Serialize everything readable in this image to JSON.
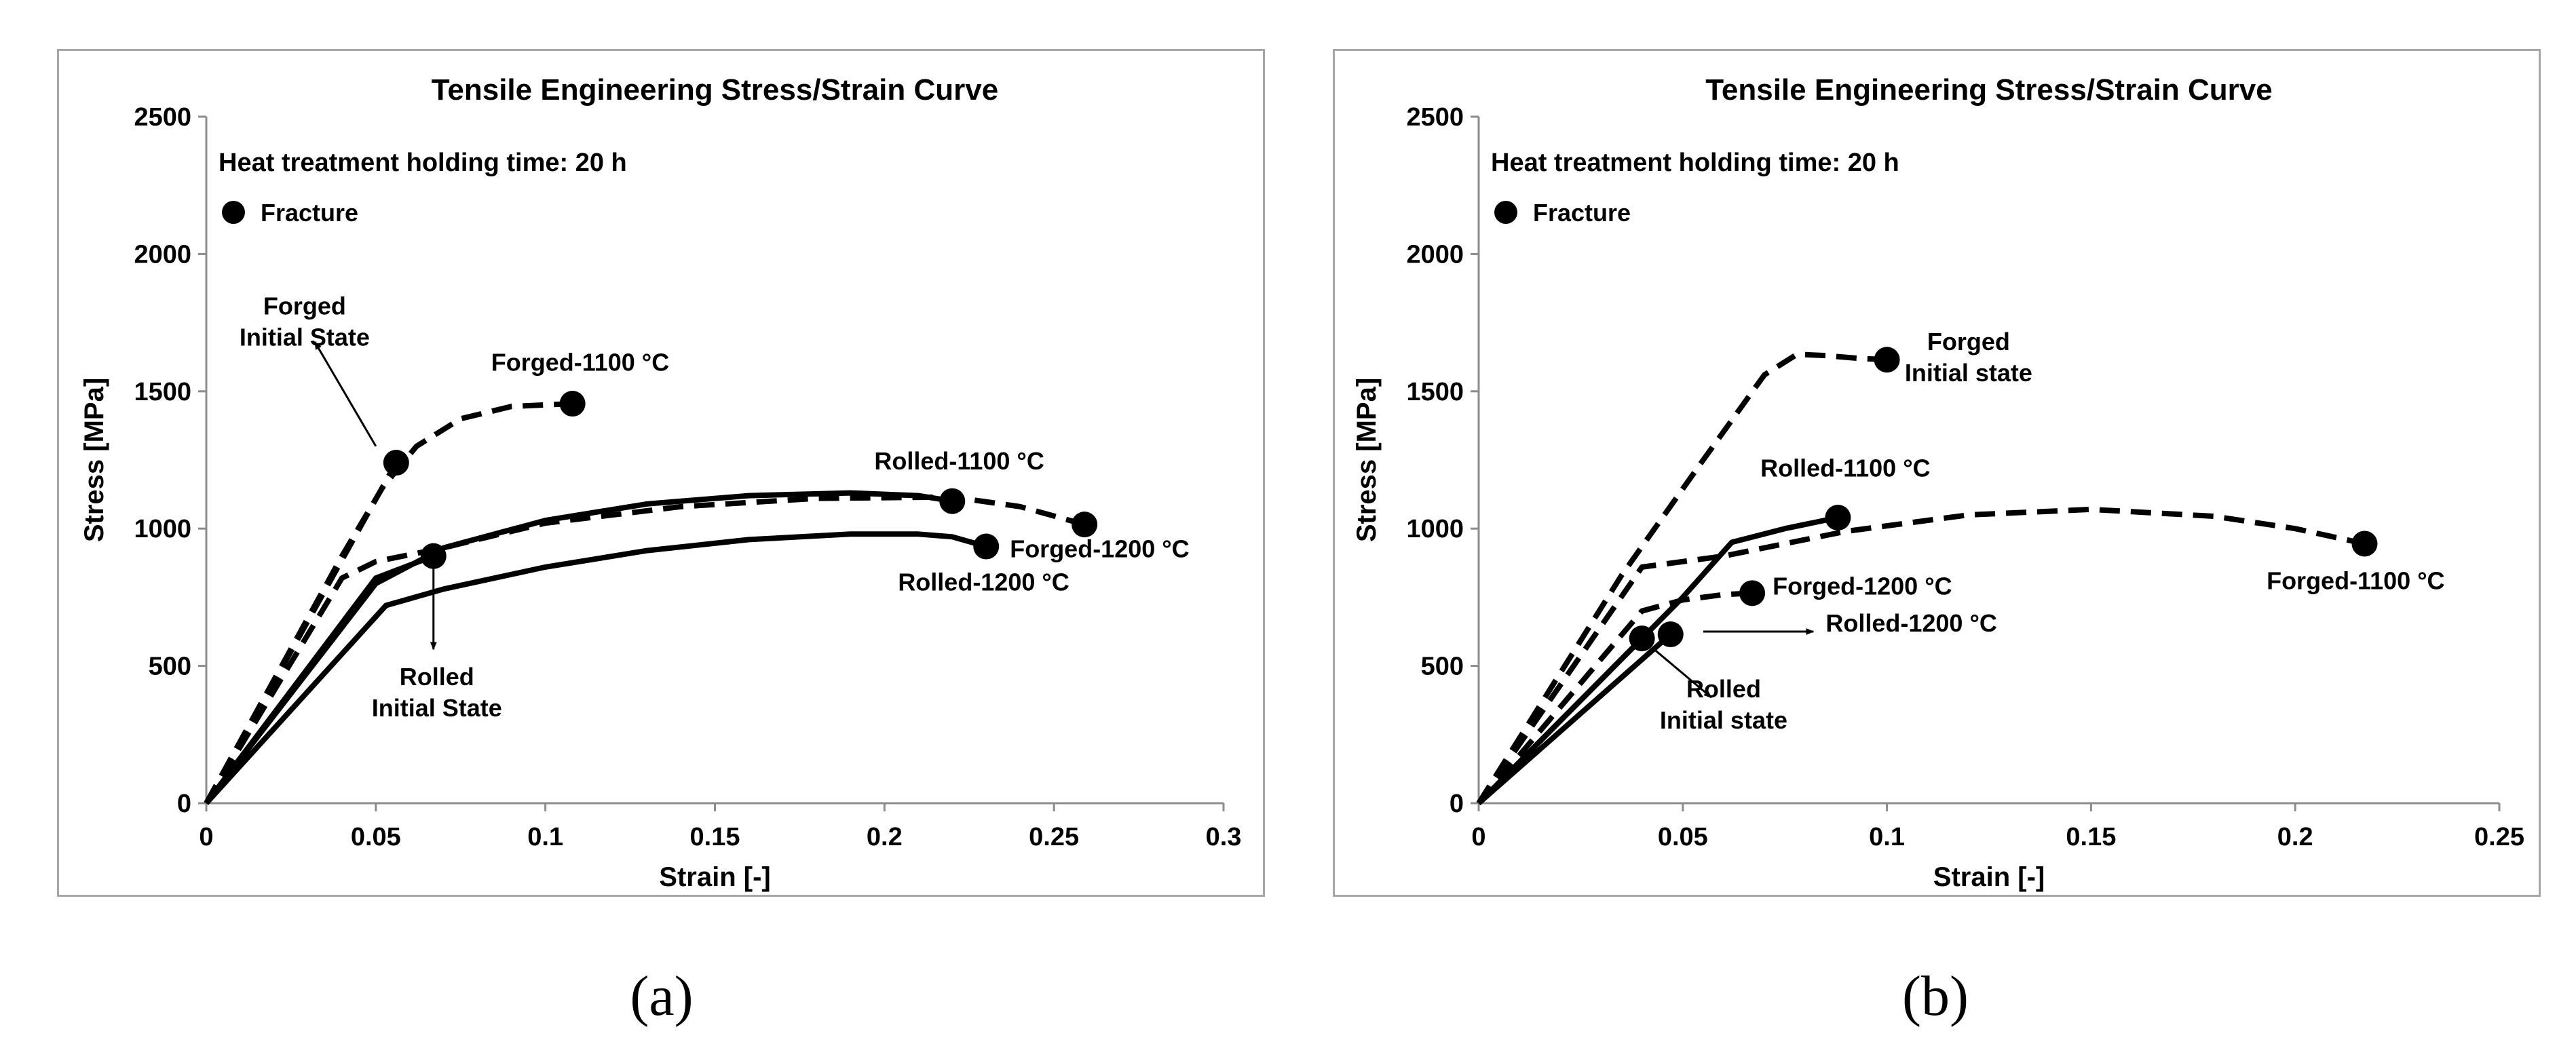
{
  "chart_data": [
    {
      "type": "line",
      "panel": "a",
      "title": "Tensile Engineering Stress/Strain Curve",
      "xlabel": "Strain [-]",
      "ylabel": "Stress [MPa]",
      "xlim": [
        0,
        0.3
      ],
      "ylim": [
        0,
        2500
      ],
      "xticks": [
        0,
        0.05,
        0.1,
        0.15,
        0.2,
        0.25,
        0.3
      ],
      "xtick_labels": [
        "0",
        "0.05",
        "0.1",
        "0.15",
        "0.2",
        "0.25",
        "0.3"
      ],
      "yticks": [
        0,
        500,
        1000,
        1500,
        2000,
        2500
      ],
      "ytick_labels": [
        "0",
        "500",
        "1000",
        "1500",
        "2000",
        "2500"
      ],
      "legend_title": "Heat treatment holding time: 20 h",
      "legend_label": "Fracture",
      "series": [
        {
          "name": "Forged Initial State",
          "style": "dashed",
          "x": [
            0,
            0.056
          ],
          "y": [
            0,
            1240
          ],
          "fracture": [
            0.056,
            1240
          ]
        },
        {
          "name": "Forged-1100 °C",
          "style": "dashed",
          "x": [
            0,
            0.04,
            0.052,
            0.062,
            0.075,
            0.09,
            0.108
          ],
          "y": [
            0,
            900,
            1150,
            1300,
            1400,
            1445,
            1455
          ],
          "fracture": [
            0.108,
            1455
          ]
        },
        {
          "name": "Forged-1200 °C",
          "style": "dashed",
          "x": [
            0,
            0.04,
            0.05,
            0.07,
            0.1,
            0.14,
            0.18,
            0.22,
            0.24,
            0.259
          ],
          "y": [
            0,
            820,
            880,
            930,
            1020,
            1080,
            1110,
            1115,
            1080,
            1015
          ],
          "fracture": [
            0.259,
            1015
          ]
        },
        {
          "name": "Rolled Initial State",
          "style": "solid",
          "x": [
            0,
            0.05,
            0.067
          ],
          "y": [
            0,
            820,
            900
          ],
          "fracture": [
            0.067,
            900
          ]
        },
        {
          "name": "Rolled-1100 °C",
          "style": "solid",
          "x": [
            0,
            0.05,
            0.07,
            0.1,
            0.13,
            0.16,
            0.19,
            0.21,
            0.22
          ],
          "y": [
            0,
            800,
            930,
            1030,
            1090,
            1120,
            1130,
            1120,
            1100
          ],
          "fracture": [
            0.22,
            1100
          ]
        },
        {
          "name": "Rolled-1200 °C",
          "style": "solid",
          "x": [
            0,
            0.053,
            0.07,
            0.1,
            0.13,
            0.16,
            0.19,
            0.21,
            0.22,
            0.23
          ],
          "y": [
            0,
            720,
            780,
            860,
            920,
            960,
            980,
            980,
            970,
            935
          ],
          "fracture": [
            0.23,
            935
          ]
        }
      ],
      "annotations": [
        {
          "text": [
            "Forged",
            "Initial State"
          ],
          "x": 0.029,
          "y": 1780,
          "anchor": "middle"
        },
        {
          "text": [
            "Forged-1100 °C"
          ],
          "x": 0.084,
          "y": 1575,
          "anchor": "start"
        },
        {
          "text": [
            "Rolled-1100 °C"
          ],
          "x": 0.197,
          "y": 1215,
          "anchor": "start"
        },
        {
          "text": [
            "Forged-1200 °C"
          ],
          "x": 0.237,
          "y": 895,
          "anchor": "start"
        },
        {
          "text": [
            "Rolled-1200 °C"
          ],
          "x": 0.204,
          "y": 775,
          "anchor": "start"
        },
        {
          "text": [
            "Rolled",
            "Initial State"
          ],
          "x": 0.068,
          "y": 430,
          "anchor": "middle"
        }
      ],
      "arrows": [
        {
          "from": [
            0.05,
            1300
          ],
          "to": [
            0.032,
            1680
          ]
        },
        {
          "from": [
            0.067,
            860
          ],
          "to": [
            0.067,
            560
          ]
        }
      ]
    },
    {
      "type": "line",
      "panel": "b",
      "title": "Tensile Engineering Stress/Strain Curve",
      "xlabel": "Strain [-]",
      "ylabel": "Stress [MPa]",
      "xlim": [
        0,
        0.25
      ],
      "ylim": [
        0,
        2500
      ],
      "xticks": [
        0,
        0.05,
        0.1,
        0.15,
        0.2,
        0.25
      ],
      "xtick_labels": [
        "0",
        "0.05",
        "0.1",
        "0.15",
        "0.2",
        "0.25"
      ],
      "yticks": [
        0,
        500,
        1000,
        1500,
        2000,
        2500
      ],
      "ytick_labels": [
        "0",
        "500",
        "1000",
        "1500",
        "2000",
        "2500"
      ],
      "legend_title": "Heat treatment holding time: 20 h",
      "legend_label": "Fracture",
      "series": [
        {
          "name": "Forged Initial state",
          "style": "dashed",
          "x": [
            0,
            0.035,
            0.055,
            0.07,
            0.078,
            0.085,
            0.093,
            0.1
          ],
          "y": [
            0,
            830,
            1250,
            1560,
            1635,
            1630,
            1620,
            1615
          ],
          "fracture": [
            0.1,
            1615
          ]
        },
        {
          "name": "Forged-1100 °C",
          "style": "dashed",
          "x": [
            0,
            0.04,
            0.06,
            0.09,
            0.12,
            0.15,
            0.18,
            0.2,
            0.217
          ],
          "y": [
            0,
            860,
            900,
            990,
            1050,
            1070,
            1045,
            1000,
            945
          ],
          "fracture": [
            0.217,
            945
          ]
        },
        {
          "name": "Forged-1200 °C",
          "style": "dashed",
          "x": [
            0,
            0.04,
            0.05,
            0.06,
            0.067
          ],
          "y": [
            0,
            700,
            740,
            760,
            765
          ],
          "fracture": [
            0.067,
            765
          ]
        },
        {
          "name": "Rolled-1100 °C",
          "style": "solid",
          "x": [
            0,
            0.05,
            0.062,
            0.075,
            0.088
          ],
          "y": [
            0,
            750,
            950,
            1000,
            1040
          ],
          "fracture": [
            0.088,
            1040
          ]
        },
        {
          "name": "Rolled-1200 °C",
          "style": "solid",
          "x": [
            0,
            0.047
          ],
          "y": [
            0,
            615
          ],
          "fracture": [
            0.047,
            615
          ]
        },
        {
          "name": "Rolled Initial state",
          "style": "solid",
          "x": [
            0,
            0.04
          ],
          "y": [
            0,
            600
          ],
          "fracture": [
            0.04,
            600
          ]
        }
      ],
      "annotations": [
        {
          "text": [
            "Forged",
            "Initial state"
          ],
          "x": 0.12,
          "y": 1650,
          "anchor": "middle"
        },
        {
          "text": [
            "Rolled-1100 °C"
          ],
          "x": 0.069,
          "y": 1190,
          "anchor": "start"
        },
        {
          "text": [
            "Forged-1100 °C"
          ],
          "x": 0.193,
          "y": 780,
          "anchor": "start"
        },
        {
          "text": [
            "Forged-1200 °C"
          ],
          "x": 0.072,
          "y": 760,
          "anchor": "start"
        },
        {
          "text": [
            "Rolled-1200 °C"
          ],
          "x": 0.085,
          "y": 625,
          "anchor": "start"
        },
        {
          "text": [
            "Rolled",
            "Initial state"
          ],
          "x": 0.06,
          "y": 385,
          "anchor": "middle"
        }
      ],
      "arrows": [
        {
          "from": [
            0.055,
            625
          ],
          "to": [
            0.082,
            625
          ]
        },
        {
          "from": [
            0.043,
            560
          ],
          "to": [
            0.057,
            385
          ]
        }
      ]
    }
  ],
  "captions": [
    "(a)",
    "(b)"
  ]
}
